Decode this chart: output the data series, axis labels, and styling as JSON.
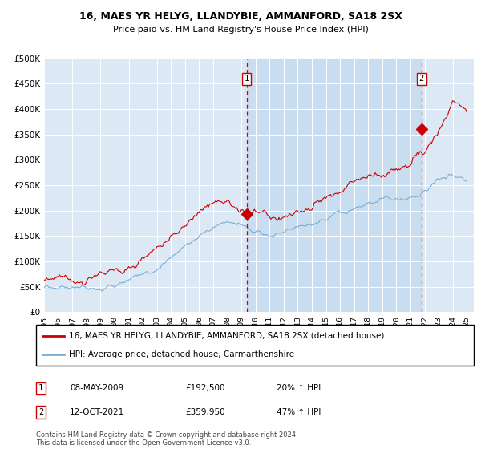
{
  "title": "16, MAES YR HELYG, LLANDYBIE, AMMANFORD, SA18 2SX",
  "subtitle": "Price paid vs. HM Land Registry's House Price Index (HPI)",
  "ylabel_ticks": [
    "£0",
    "£50K",
    "£100K",
    "£150K",
    "£200K",
    "£250K",
    "£300K",
    "£350K",
    "£400K",
    "£450K",
    "£500K"
  ],
  "ylim": [
    0,
    500000
  ],
  "xlim_start": 1995.0,
  "xlim_end": 2025.5,
  "background_color": "#dce9f5",
  "shade_color": "#c8ddf0",
  "grid_color": "#ffffff",
  "red_line_color": "#cc0000",
  "blue_line_color": "#7aaed6",
  "transaction1_x": 2009.37,
  "transaction1_y": 192500,
  "transaction2_x": 2021.79,
  "transaction2_y": 359950,
  "legend_line1": "16, MAES YR HELYG, LLANDYBIE, AMMANFORD, SA18 2SX (detached house)",
  "legend_line2": "HPI: Average price, detached house, Carmarthenshire",
  "transaction1_date": "08-MAY-2009",
  "transaction1_price": "£192,500",
  "transaction1_hpi": "20% ↑ HPI",
  "transaction2_date": "12-OCT-2021",
  "transaction2_price": "£359,950",
  "transaction2_hpi": "47% ↑ HPI",
  "footer": "Contains HM Land Registry data © Crown copyright and database right 2024.\nThis data is licensed under the Open Government Licence v3.0."
}
